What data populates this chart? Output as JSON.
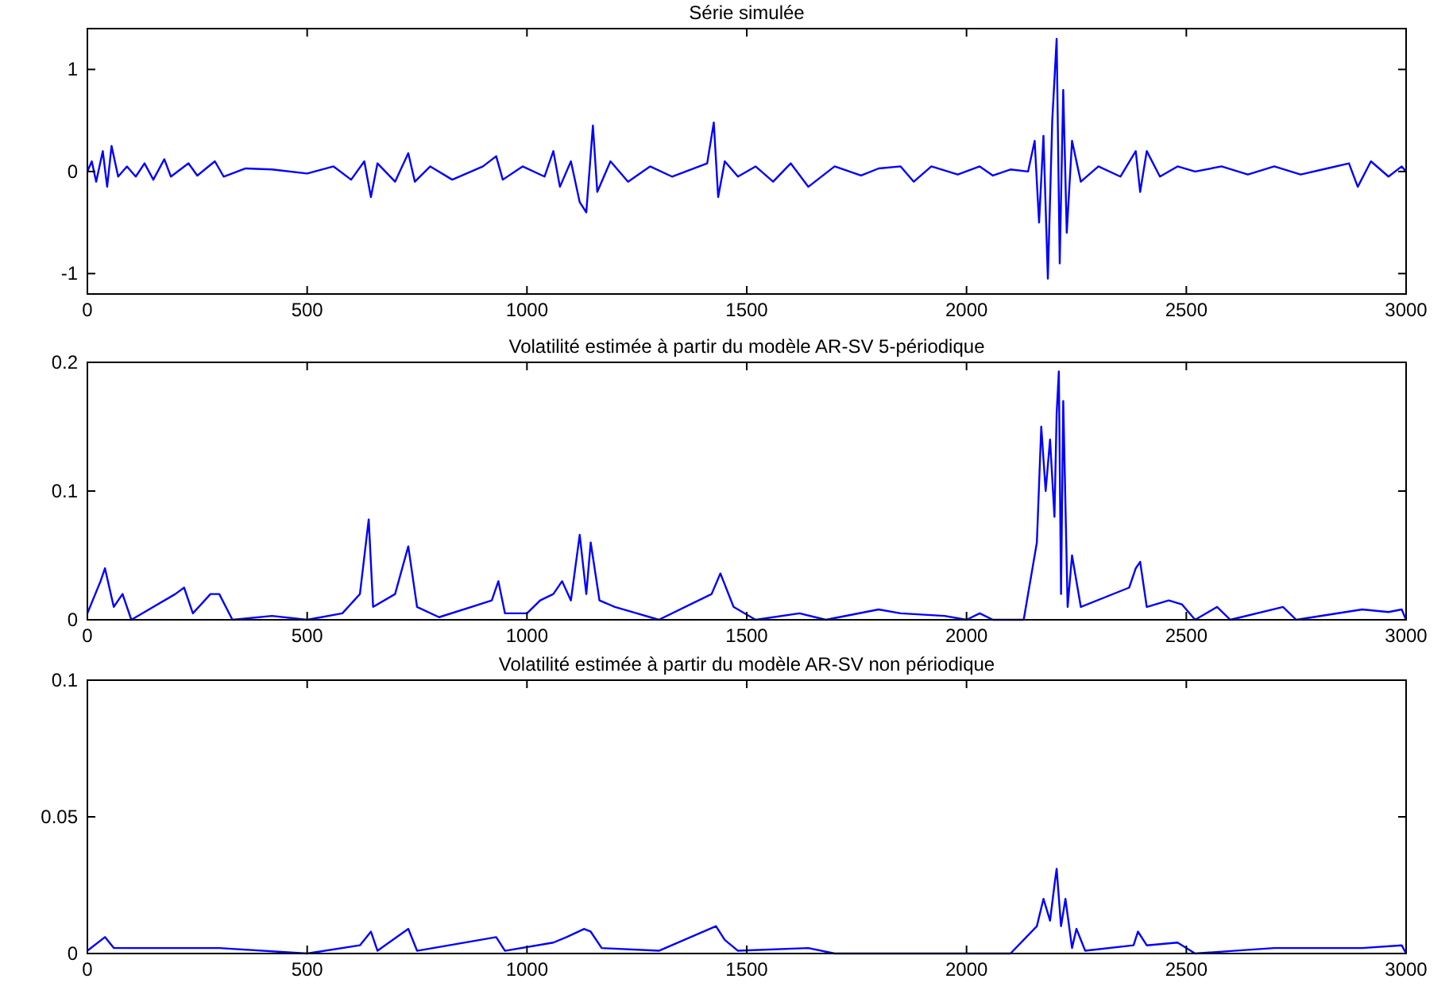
{
  "chart_data": [
    {
      "type": "line",
      "title": "Série simulée",
      "xlim": [
        0,
        3000
      ],
      "xticks": [
        0,
        500,
        1000,
        1500,
        2000,
        2500,
        3000
      ],
      "ylim": [
        -1.2,
        1.4
      ],
      "yticks": [
        -1,
        0,
        1
      ],
      "x": [
        0,
        10,
        20,
        35,
        45,
        55,
        70,
        90,
        110,
        130,
        150,
        175,
        190,
        230,
        250,
        290,
        310,
        360,
        420,
        500,
        560,
        600,
        630,
        645,
        660,
        700,
        730,
        745,
        780,
        830,
        900,
        930,
        945,
        990,
        1040,
        1060,
        1075,
        1100,
        1120,
        1135,
        1150,
        1160,
        1190,
        1230,
        1280,
        1330,
        1380,
        1410,
        1425,
        1435,
        1450,
        1480,
        1520,
        1560,
        1600,
        1640,
        1700,
        1760,
        1800,
        1850,
        1880,
        1920,
        1980,
        2030,
        2060,
        2100,
        2140,
        2155,
        2165,
        2175,
        2185,
        2195,
        2205,
        2212,
        2220,
        2228,
        2240,
        2260,
        2300,
        2350,
        2385,
        2395,
        2410,
        2440,
        2480,
        2520,
        2580,
        2640,
        2700,
        2760,
        2820,
        2870,
        2890,
        2920,
        2960,
        2990,
        3000
      ],
      "series": [
        {
          "color": "#0000ff",
          "values": [
            0,
            0.1,
            -0.1,
            0.2,
            -0.15,
            0.25,
            -0.05,
            0.05,
            -0.05,
            0.08,
            -0.08,
            0.12,
            -0.05,
            0.08,
            -0.04,
            0.1,
            -0.05,
            0.03,
            0.02,
            -0.02,
            0.05,
            -0.08,
            0.1,
            -0.25,
            0.08,
            -0.1,
            0.18,
            -0.1,
            0.05,
            -0.08,
            0.05,
            0.15,
            -0.08,
            0.05,
            -0.05,
            0.2,
            -0.15,
            0.1,
            -0.3,
            -0.4,
            0.45,
            -0.2,
            0.1,
            -0.1,
            0.05,
            -0.05,
            0.03,
            0.08,
            0.48,
            -0.25,
            0.1,
            -0.05,
            0.05,
            -0.1,
            0.08,
            -0.15,
            0.05,
            -0.04,
            0.03,
            0.05,
            -0.1,
            0.05,
            -0.03,
            0.05,
            -0.04,
            0.02,
            0,
            0.3,
            -0.5,
            0.35,
            -1.05,
            0.5,
            1.3,
            -0.9,
            0.8,
            -0.6,
            0.3,
            -0.1,
            0.05,
            -0.05,
            0.2,
            -0.2,
            0.2,
            -0.05,
            0.05,
            0,
            0.05,
            -0.03,
            0.05,
            -0.03,
            0.03,
            0.08,
            -0.15,
            0.1,
            -0.05,
            0.05,
            0
          ]
        }
      ]
    },
    {
      "type": "line",
      "title": "Volatilité estimée à partir du modèle AR-SV 5-périodique",
      "xlim": [
        0,
        3000
      ],
      "xticks": [
        0,
        500,
        1000,
        1500,
        2000,
        2500,
        3000
      ],
      "ylim": [
        0,
        0.2
      ],
      "yticks": [
        0,
        0.1,
        0.2
      ],
      "x": [
        0,
        30,
        40,
        60,
        80,
        100,
        200,
        220,
        240,
        280,
        300,
        330,
        420,
        500,
        580,
        620,
        640,
        650,
        700,
        730,
        750,
        800,
        920,
        935,
        950,
        1000,
        1030,
        1060,
        1080,
        1100,
        1120,
        1135,
        1145,
        1165,
        1200,
        1250,
        1300,
        1420,
        1440,
        1470,
        1520,
        1620,
        1680,
        1800,
        1850,
        1950,
        2000,
        2030,
        2060,
        2130,
        2160,
        2170,
        2180,
        2190,
        2200,
        2205,
        2210,
        2215,
        2220,
        2230,
        2240,
        2260,
        2370,
        2385,
        2395,
        2410,
        2460,
        2490,
        2520,
        2570,
        2600,
        2720,
        2750,
        2900,
        2960,
        2990,
        3000
      ],
      "series": [
        {
          "color": "#0000ff",
          "values": [
            0.005,
            0.03,
            0.04,
            0.01,
            0.02,
            0,
            0.02,
            0.025,
            0.005,
            0.02,
            0.02,
            0,
            0.003,
            0,
            0.005,
            0.02,
            0.078,
            0.01,
            0.02,
            0.057,
            0.01,
            0.002,
            0.015,
            0.03,
            0.005,
            0.005,
            0.015,
            0.02,
            0.03,
            0.015,
            0.066,
            0.02,
            0.06,
            0.015,
            0.01,
            0.005,
            0,
            0.02,
            0.036,
            0.01,
            0,
            0.005,
            0,
            0.008,
            0.005,
            0.003,
            0,
            0.005,
            0,
            0,
            0.06,
            0.15,
            0.1,
            0.14,
            0.08,
            0.16,
            0.193,
            0.02,
            0.17,
            0.01,
            0.05,
            0.01,
            0.025,
            0.04,
            0.045,
            0.01,
            0.015,
            0.012,
            0,
            0.01,
            0,
            0.01,
            0,
            0.008,
            0.006,
            0.008,
            0
          ]
        }
      ]
    },
    {
      "type": "line",
      "title": "Volatilité estimée à partir du modèle AR-SV non périodique",
      "xlim": [
        0,
        3000
      ],
      "xticks": [
        0,
        500,
        1000,
        1500,
        2000,
        2500,
        3000
      ],
      "ylim": [
        0,
        0.1
      ],
      "yticks": [
        0,
        0.05,
        0.1
      ],
      "x": [
        0,
        40,
        60,
        200,
        300,
        500,
        620,
        645,
        660,
        730,
        750,
        930,
        950,
        1060,
        1090,
        1130,
        1145,
        1170,
        1300,
        1430,
        1450,
        1480,
        1640,
        1700,
        2100,
        2160,
        2175,
        2190,
        2200,
        2205,
        2215,
        2225,
        2240,
        2250,
        2270,
        2380,
        2390,
        2410,
        2480,
        2520,
        2700,
        2900,
        2990,
        3000
      ],
      "series": [
        {
          "color": "#0000ff",
          "values": [
            0.001,
            0.006,
            0.002,
            0.002,
            0.002,
            0,
            0.003,
            0.008,
            0.001,
            0.009,
            0.001,
            0.006,
            0.001,
            0.004,
            0.006,
            0.009,
            0.008,
            0.002,
            0.001,
            0.01,
            0.005,
            0.001,
            0.002,
            0,
            0,
            0.01,
            0.02,
            0.012,
            0.025,
            0.031,
            0.01,
            0.02,
            0.002,
            0.009,
            0.001,
            0.003,
            0.008,
            0.003,
            0.004,
            0,
            0.002,
            0.002,
            0.003,
            0
          ]
        }
      ]
    }
  ]
}
